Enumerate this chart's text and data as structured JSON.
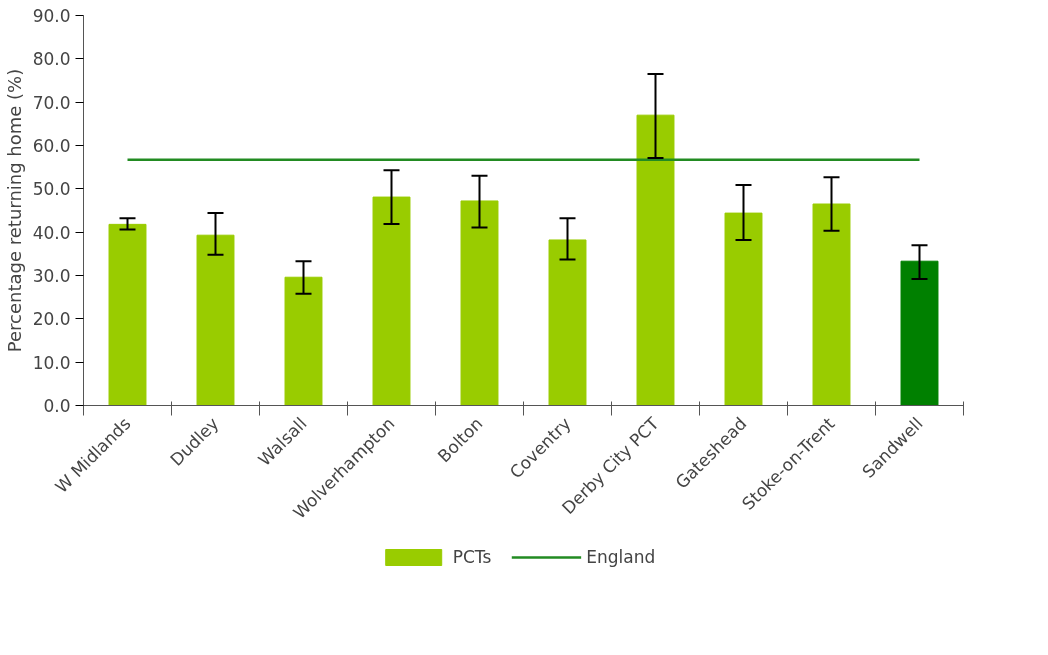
{
  "chart_data": {
    "type": "bar",
    "ylabel": "Percentage returning home (%)",
    "categories": [
      "W Midlands",
      "Dudley",
      "Walsall",
      "Wolverhampton",
      "Bolton",
      "Coventry",
      "Derby City PCT",
      "Gateshead",
      "Stoke-on-Trent",
      "Sandwell"
    ],
    "series": [
      {
        "name": "PCTs",
        "type": "bar",
        "color": "#99cc00",
        "colors": [
          "#99cc00",
          "#99cc00",
          "#99cc00",
          "#99cc00",
          "#99cc00",
          "#99cc00",
          "#99cc00",
          "#99cc00",
          "#99cc00",
          "#008000"
        ],
        "values": [
          41.8,
          39.3,
          29.6,
          48.1,
          47.2,
          38.2,
          67.0,
          44.4,
          46.5,
          33.3
        ],
        "errors": [
          [
            40.6,
            43.2
          ],
          [
            34.8,
            44.4
          ],
          [
            25.8,
            33.3
          ],
          [
            41.9,
            54.3
          ],
          [
            41.1,
            53.0
          ],
          [
            33.7,
            43.2
          ],
          [
            57.1,
            76.5
          ],
          [
            38.2,
            50.9
          ],
          [
            40.3,
            52.7
          ],
          [
            29.2,
            37.0
          ]
        ]
      },
      {
        "name": "England",
        "type": "line",
        "color": "#228b22",
        "values": [
          56.7,
          56.7,
          56.7,
          56.7,
          56.7,
          56.7,
          56.7,
          56.7,
          56.7,
          56.7
        ]
      }
    ],
    "ylim": [
      0,
      90
    ],
    "yticks": [
      {
        "value": 0,
        "label": "0.0"
      },
      {
        "value": 10,
        "label": "10.0"
      },
      {
        "value": 20,
        "label": "20.0"
      },
      {
        "value": 30,
        "label": "30.0"
      },
      {
        "value": 40,
        "label": "40.0"
      },
      {
        "value": 50,
        "label": "50.0"
      },
      {
        "value": 60,
        "label": "60.0"
      },
      {
        "value": 70,
        "label": "70.0"
      },
      {
        "value": 80,
        "label": "80.0"
      },
      {
        "value": 90,
        "label": "90.0"
      }
    ],
    "grid": false,
    "legend": "bottom"
  }
}
